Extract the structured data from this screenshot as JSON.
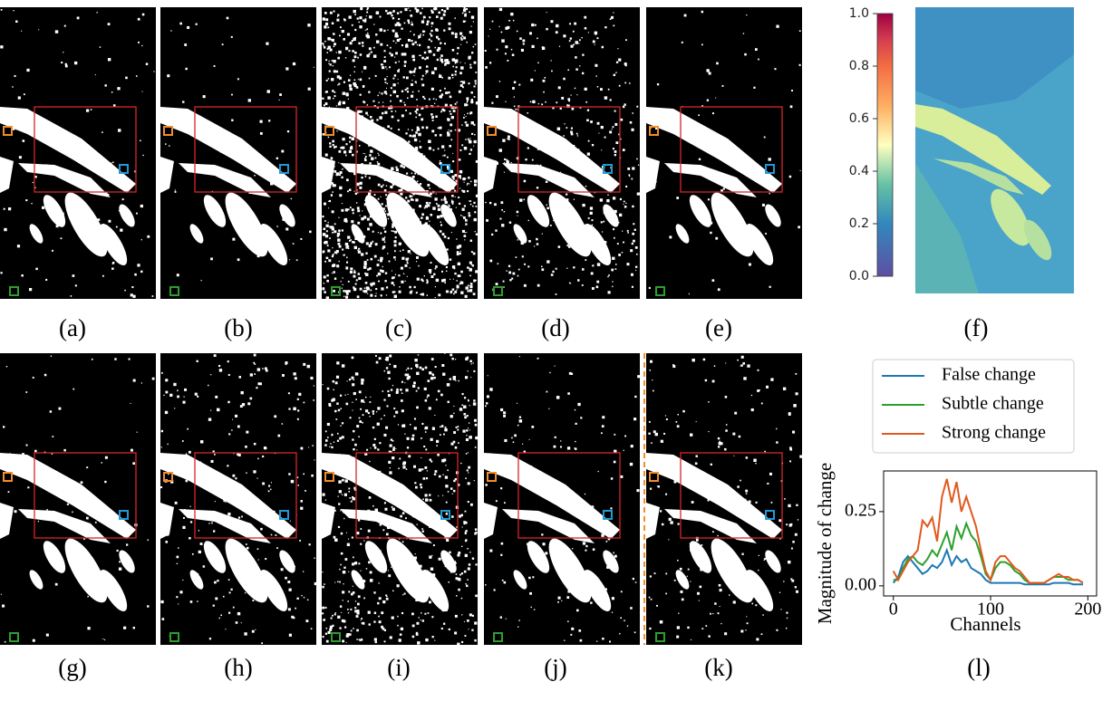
{
  "captions": [
    "(a)",
    "(b)",
    "(c)",
    "(d)",
    "(e)",
    "(f)",
    "(g)",
    "(h)",
    "(i)",
    "(j)",
    "(k)",
    "(l)"
  ],
  "colorbar": {
    "ticks": [
      {
        "value": 0,
        "label": "0.0"
      },
      {
        "value": 0.2,
        "label": "0.2"
      },
      {
        "value": 0.4,
        "label": "0.4"
      },
      {
        "value": 0.6,
        "label": "0.6"
      },
      {
        "value": 0.8,
        "label": "0.8"
      },
      {
        "value": 1,
        "label": "1.0"
      }
    ]
  },
  "chart_data": {
    "type": "line",
    "xlabel": "Channels",
    "ylabel": "Magnitude of change",
    "x": [
      0,
      5,
      10,
      15,
      20,
      25,
      30,
      35,
      40,
      45,
      50,
      55,
      60,
      65,
      70,
      75,
      80,
      85,
      90,
      95,
      100,
      105,
      110,
      115,
      120,
      125,
      130,
      135,
      140,
      145,
      150,
      155,
      160,
      165,
      170,
      175,
      180,
      185,
      190,
      195
    ],
    "xlim": [
      -10,
      209
    ],
    "ylim": [
      -0.034,
      0.387
    ],
    "xticks": [
      0,
      100,
      200
    ],
    "yticks": [
      {
        "value": 0,
        "label": "0.00"
      },
      {
        "value": 0.25,
        "label": "0.25"
      }
    ],
    "series": [
      {
        "name": "False change",
        "color": "#1f77b4",
        "values": [
          0.01,
          0.03,
          0.08,
          0.1,
          0.08,
          0.06,
          0.04,
          0.05,
          0.07,
          0.06,
          0.08,
          0.12,
          0.07,
          0.1,
          0.08,
          0.09,
          0.06,
          0.05,
          0.04,
          0.02,
          0.01,
          0.01,
          0.01,
          0.01,
          0.01,
          0.01,
          0.01,
          0.005,
          0.005,
          0.005,
          0.005,
          0.005,
          0.005,
          0.01,
          0.01,
          0.01,
          0.01,
          0.005,
          0.005,
          0.005
        ]
      },
      {
        "name": "Subtle change",
        "color": "#2ca02c",
        "values": [
          0.02,
          0.02,
          0.06,
          0.09,
          0.1,
          0.08,
          0.07,
          0.09,
          0.12,
          0.1,
          0.14,
          0.18,
          0.12,
          0.2,
          0.16,
          0.21,
          0.17,
          0.15,
          0.1,
          0.04,
          0.02,
          0.06,
          0.08,
          0.08,
          0.07,
          0.05,
          0.04,
          0.02,
          0.01,
          0.01,
          0.01,
          0.01,
          0.02,
          0.03,
          0.03,
          0.03,
          0.02,
          0.02,
          0.02,
          0.01
        ]
      },
      {
        "name": "Strong change",
        "color": "#e2581d",
        "values": [
          0.05,
          0.02,
          0.05,
          0.08,
          0.1,
          0.12,
          0.22,
          0.2,
          0.23,
          0.15,
          0.3,
          0.36,
          0.28,
          0.35,
          0.25,
          0.3,
          0.25,
          0.2,
          0.12,
          0.05,
          0.02,
          0.08,
          0.1,
          0.1,
          0.08,
          0.06,
          0.05,
          0.03,
          0.01,
          0.01,
          0.01,
          0.01,
          0.02,
          0.03,
          0.04,
          0.03,
          0.03,
          0.02,
          0.02,
          0.01
        ]
      }
    ]
  }
}
